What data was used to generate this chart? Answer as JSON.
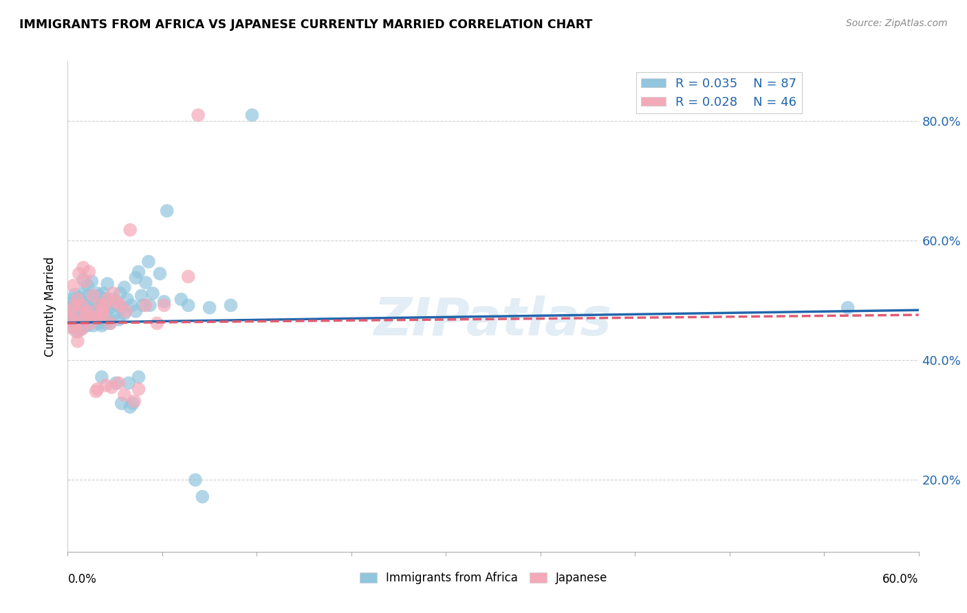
{
  "title": "IMMIGRANTS FROM AFRICA VS JAPANESE CURRENTLY MARRIED CORRELATION CHART",
  "source": "Source: ZipAtlas.com",
  "ylabel": "Currently Married",
  "xlim": [
    0.0,
    0.6
  ],
  "ylim": [
    0.08,
    0.9
  ],
  "yticks": [
    0.2,
    0.4,
    0.6,
    0.8
  ],
  "ytick_labels": [
    "20.0%",
    "40.0%",
    "60.0%",
    "80.0%"
  ],
  "legend_r1": "R = 0.035",
  "legend_n1": "N = 87",
  "legend_r2": "R = 0.028",
  "legend_n2": "N = 46",
  "color_blue": "#92c5de",
  "color_pink": "#f4a9b8",
  "line_color_blue": "#2166ac",
  "line_color_pink": "#e05c72",
  "watermark": "ZIPatlas",
  "blue_scatter": [
    [
      0.001,
      0.48
    ],
    [
      0.002,
      0.475
    ],
    [
      0.002,
      0.495
    ],
    [
      0.003,
      0.465
    ],
    [
      0.003,
      0.488
    ],
    [
      0.004,
      0.502
    ],
    [
      0.004,
      0.455
    ],
    [
      0.005,
      0.472
    ],
    [
      0.005,
      0.51
    ],
    [
      0.006,
      0.46
    ],
    [
      0.006,
      0.49
    ],
    [
      0.007,
      0.475
    ],
    [
      0.007,
      0.448
    ],
    [
      0.008,
      0.505
    ],
    [
      0.008,
      0.465
    ],
    [
      0.009,
      0.488
    ],
    [
      0.009,
      0.452
    ],
    [
      0.01,
      0.478
    ],
    [
      0.01,
      0.495
    ],
    [
      0.011,
      0.535
    ],
    [
      0.011,
      0.468
    ],
    [
      0.012,
      0.515
    ],
    [
      0.012,
      0.458
    ],
    [
      0.013,
      0.478
    ],
    [
      0.013,
      0.492
    ],
    [
      0.014,
      0.525
    ],
    [
      0.014,
      0.458
    ],
    [
      0.015,
      0.462
    ],
    [
      0.015,
      0.508
    ],
    [
      0.016,
      0.482
    ],
    [
      0.016,
      0.472
    ],
    [
      0.017,
      0.532
    ],
    [
      0.018,
      0.492
    ],
    [
      0.018,
      0.458
    ],
    [
      0.019,
      0.502
    ],
    [
      0.02,
      0.478
    ],
    [
      0.021,
      0.512
    ],
    [
      0.022,
      0.508
    ],
    [
      0.022,
      0.462
    ],
    [
      0.023,
      0.492
    ],
    [
      0.024,
      0.458
    ],
    [
      0.024,
      0.372
    ],
    [
      0.025,
      0.482
    ],
    [
      0.025,
      0.512
    ],
    [
      0.026,
      0.502
    ],
    [
      0.027,
      0.462
    ],
    [
      0.027,
      0.492
    ],
    [
      0.028,
      0.472
    ],
    [
      0.028,
      0.528
    ],
    [
      0.03,
      0.488
    ],
    [
      0.03,
      0.462
    ],
    [
      0.032,
      0.502
    ],
    [
      0.033,
      0.478
    ],
    [
      0.034,
      0.362
    ],
    [
      0.035,
      0.492
    ],
    [
      0.036,
      0.468
    ],
    [
      0.037,
      0.512
    ],
    [
      0.038,
      0.488
    ],
    [
      0.038,
      0.328
    ],
    [
      0.04,
      0.522
    ],
    [
      0.04,
      0.478
    ],
    [
      0.042,
      0.502
    ],
    [
      0.043,
      0.362
    ],
    [
      0.044,
      0.322
    ],
    [
      0.045,
      0.492
    ],
    [
      0.046,
      0.328
    ],
    [
      0.048,
      0.538
    ],
    [
      0.048,
      0.482
    ],
    [
      0.05,
      0.548
    ],
    [
      0.05,
      0.372
    ],
    [
      0.052,
      0.508
    ],
    [
      0.053,
      0.492
    ],
    [
      0.055,
      0.53
    ],
    [
      0.057,
      0.565
    ],
    [
      0.058,
      0.492
    ],
    [
      0.06,
      0.512
    ],
    [
      0.065,
      0.545
    ],
    [
      0.068,
      0.498
    ],
    [
      0.07,
      0.65
    ],
    [
      0.08,
      0.502
    ],
    [
      0.085,
      0.492
    ],
    [
      0.09,
      0.2
    ],
    [
      0.095,
      0.172
    ],
    [
      0.1,
      0.488
    ],
    [
      0.115,
      0.492
    ],
    [
      0.13,
      0.81
    ],
    [
      0.55,
      0.488
    ]
  ],
  "pink_scatter": [
    [
      0.001,
      0.472
    ],
    [
      0.002,
      0.455
    ],
    [
      0.003,
      0.482
    ],
    [
      0.004,
      0.525
    ],
    [
      0.005,
      0.462
    ],
    [
      0.005,
      0.492
    ],
    [
      0.006,
      0.448
    ],
    [
      0.007,
      0.432
    ],
    [
      0.007,
      0.502
    ],
    [
      0.008,
      0.545
    ],
    [
      0.009,
      0.468
    ],
    [
      0.01,
      0.492
    ],
    [
      0.01,
      0.452
    ],
    [
      0.011,
      0.555
    ],
    [
      0.012,
      0.532
    ],
    [
      0.013,
      0.478
    ],
    [
      0.014,
      0.482
    ],
    [
      0.015,
      0.548
    ],
    [
      0.016,
      0.462
    ],
    [
      0.018,
      0.508
    ],
    [
      0.019,
      0.472
    ],
    [
      0.02,
      0.348
    ],
    [
      0.021,
      0.352
    ],
    [
      0.022,
      0.472
    ],
    [
      0.023,
      0.492
    ],
    [
      0.024,
      0.482
    ],
    [
      0.025,
      0.478
    ],
    [
      0.026,
      0.492
    ],
    [
      0.027,
      0.358
    ],
    [
      0.028,
      0.502
    ],
    [
      0.03,
      0.462
    ],
    [
      0.031,
      0.355
    ],
    [
      0.032,
      0.512
    ],
    [
      0.034,
      0.498
    ],
    [
      0.036,
      0.362
    ],
    [
      0.037,
      0.492
    ],
    [
      0.04,
      0.342
    ],
    [
      0.041,
      0.482
    ],
    [
      0.044,
      0.618
    ],
    [
      0.047,
      0.332
    ],
    [
      0.05,
      0.352
    ],
    [
      0.055,
      0.492
    ],
    [
      0.063,
      0.462
    ],
    [
      0.068,
      0.492
    ],
    [
      0.085,
      0.54
    ],
    [
      0.092,
      0.81
    ]
  ],
  "blue_line_x": [
    0.0,
    0.6
  ],
  "blue_line_y": [
    0.463,
    0.484
  ],
  "pink_line_x": [
    0.0,
    0.6
  ],
  "pink_line_y": [
    0.462,
    0.476
  ],
  "background_color": "#ffffff",
  "grid_color": "#d0d0d0"
}
